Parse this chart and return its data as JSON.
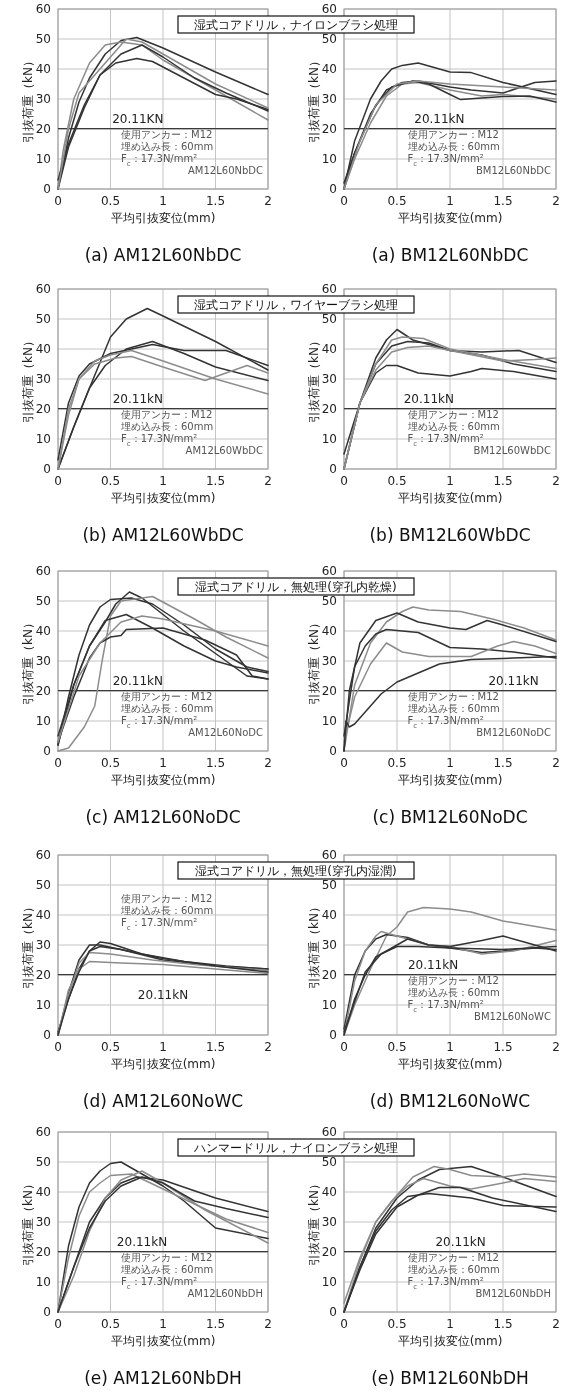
{
  "chart_data": [
    {
      "type": "line",
      "title": "湿式コアドリル，ナイロンブラシ処理",
      "subtitle": "(a) AM12L60NbDC",
      "xlabel": "平均引抜変位(mm)",
      "ylabel": "引抜荷重（kN）",
      "xlim": [
        0,
        2
      ],
      "ylim": [
        0,
        60
      ],
      "xticks": [
        0,
        0.5,
        1,
        1.5,
        2
      ],
      "yticks": [
        0,
        10,
        20,
        30,
        40,
        50,
        60
      ],
      "grid": true,
      "ref_lines": [
        {
          "axis": "y",
          "value": 20.11,
          "label": "20.11KN"
        }
      ],
      "annotations": [
        "使用アンカー：M12",
        "埋め込み長：60mm",
        "F$_{c}$：17.3N/mm²",
        "AM12L60NbDC"
      ],
      "series": [
        {
          "color": "#333333",
          "x": [
            0,
            0.1,
            0.2,
            0.3,
            0.45,
            0.6,
            0.75,
            1,
            1.5,
            2
          ],
          "values": [
            0,
            17,
            29,
            37,
            45,
            49.5,
            50.5,
            47,
            39,
            31.5
          ]
        },
        {
          "color": "#8c8c8c",
          "x": [
            0,
            0.05,
            0.15,
            0.3,
            0.45,
            0.6,
            0.8,
            1,
            1.3,
            1.6,
            2
          ],
          "values": [
            0,
            13,
            30,
            42,
            48,
            49,
            48,
            43,
            37,
            31,
            23
          ]
        },
        {
          "color": "#333333",
          "x": [
            0,
            0.1,
            0.25,
            0.4,
            0.55,
            0.75,
            0.9,
            1.2,
            1.5,
            1.7,
            2
          ],
          "values": [
            3,
            15,
            28,
            38,
            42,
            43.5,
            42.5,
            37,
            31.5,
            30,
            26.5
          ]
        },
        {
          "color": "#333333",
          "x": [
            0,
            0.1,
            0.25,
            0.4,
            0.6,
            0.8,
            1,
            1.3,
            1.6,
            2
          ],
          "values": [
            0,
            14,
            27,
            38,
            45,
            48,
            44,
            37,
            32,
            26
          ]
        },
        {
          "color": "#8c8c8c",
          "x": [
            0,
            0.1,
            0.2,
            0.3,
            0.45,
            0.65,
            0.8,
            1,
            1.5,
            2
          ],
          "values": [
            0,
            20,
            32,
            36,
            42,
            50,
            49,
            45,
            35,
            27
          ]
        }
      ]
    },
    {
      "type": "line",
      "subtitle": "(a) BM12L60NbDC",
      "xlabel": "平均引抜変位(mm)",
      "ylabel": "引抜荷重（kN）",
      "xlim": [
        0,
        2
      ],
      "ylim": [
        0,
        60
      ],
      "xticks": [
        0,
        0.5,
        1,
        1.5,
        2
      ],
      "yticks": [
        0,
        10,
        20,
        30,
        40,
        50,
        60
      ],
      "grid": true,
      "ref_lines": [
        {
          "axis": "y",
          "value": 20.11,
          "label": "20.11kN"
        }
      ],
      "annotations": [
        "使用アンカー：M12",
        "埋め込み長：60mm",
        "F$_{c}$：17.3N/mm²",
        "BM12L60NbDC"
      ],
      "series": [
        {
          "color": "#333333",
          "x": [
            0,
            0.1,
            0.25,
            0.35,
            0.45,
            0.55,
            0.7,
            0.8,
            1,
            1.2,
            1.5,
            2
          ],
          "values": [
            0,
            16,
            30,
            36,
            40,
            41.2,
            42,
            41,
            39,
            38.8,
            35.5,
            31.5
          ]
        },
        {
          "color": "#333333",
          "x": [
            0,
            0.1,
            0.25,
            0.4,
            0.55,
            0.7,
            1,
            1.2,
            1.5,
            1.8,
            2
          ],
          "values": [
            2,
            12,
            25,
            33,
            35.5,
            36,
            34,
            33,
            32,
            35.5,
            36
          ]
        },
        {
          "color": "#8c8c8c",
          "x": [
            0,
            0.1,
            0.25,
            0.4,
            0.55,
            0.7,
            1,
            1.3,
            1.5,
            2
          ],
          "values": [
            0,
            10,
            22,
            31,
            35,
            35.5,
            33,
            31,
            31.5,
            30
          ]
        },
        {
          "color": "#333333",
          "x": [
            0,
            0.1,
            0.3,
            0.45,
            0.65,
            0.8,
            1,
            1.1,
            1.5,
            1.75,
            2
          ],
          "values": [
            0,
            12,
            28,
            34,
            36,
            35,
            31.5,
            29.8,
            30.8,
            31,
            29
          ]
        },
        {
          "color": "#8c8c8c",
          "x": [
            0,
            0.15,
            0.3,
            0.5,
            0.7,
            1,
            1.5,
            2
          ],
          "values": [
            0,
            16,
            28,
            35,
            36,
            35,
            34,
            33
          ]
        }
      ]
    },
    {
      "type": "line",
      "title": "湿式コアドリル，ワイヤーブラシ処理",
      "subtitle": "(b) AM12L60WbDC",
      "xlabel": "平均引抜変位(mm)",
      "ylabel": "引抜荷重（kN）",
      "xlim": [
        0,
        2
      ],
      "ylim": [
        0,
        60
      ],
      "xticks": [
        0,
        0.5,
        1,
        1.5,
        2
      ],
      "yticks": [
        0,
        10,
        20,
        30,
        40,
        50,
        60
      ],
      "grid": true,
      "ref_lines": [
        {
          "axis": "y",
          "value": 20.11,
          "label": "20.11kN"
        }
      ],
      "annotations": [
        "使用アンカー：M12",
        "埋め込み長：60mm",
        "F$_{c}$：17.3N/mm²",
        "AM12L60WbDC"
      ],
      "series": [
        {
          "color": "#333333",
          "x": [
            0,
            0.15,
            0.3,
            0.5,
            0.65,
            0.85,
            1,
            1.5,
            2
          ],
          "values": [
            0,
            14,
            27,
            44,
            50,
            53.5,
            51,
            42.5,
            33
          ]
        },
        {
          "color": "#333333",
          "x": [
            0,
            0.1,
            0.2,
            0.3,
            0.5,
            0.7,
            0.9,
            1.2,
            1.6,
            2
          ],
          "values": [
            3,
            22,
            31,
            35,
            38.5,
            40,
            41.5,
            39.5,
            39.5,
            34.5
          ]
        },
        {
          "color": "#333333",
          "x": [
            0,
            0.15,
            0.3,
            0.45,
            0.65,
            0.9,
            1.2,
            1.5,
            2
          ],
          "values": [
            0,
            14,
            27,
            34.5,
            40,
            42.5,
            38.5,
            34,
            29.5
          ]
        },
        {
          "color": "#8c8c8c",
          "x": [
            0,
            0.1,
            0.2,
            0.35,
            0.55,
            0.7,
            1,
            1.4,
            1.8,
            2
          ],
          "values": [
            0,
            18,
            30,
            35,
            37,
            37.5,
            34,
            29.5,
            34.5,
            32
          ]
        },
        {
          "color": "#8c8c8c",
          "x": [
            0,
            0.1,
            0.2,
            0.35,
            0.5,
            0.7,
            1,
            1.5,
            2
          ],
          "values": [
            0,
            20,
            30,
            36,
            38,
            39.5,
            36,
            30,
            25
          ]
        }
      ]
    },
    {
      "type": "line",
      "subtitle": "(b) BM12L60WbDC",
      "xlabel": "平均引抜変位(mm)",
      "ylabel": "引抜荷重（kN）",
      "xlim": [
        0,
        2
      ],
      "ylim": [
        0,
        60
      ],
      "xticks": [
        0,
        0.5,
        1,
        1.5,
        2
      ],
      "yticks": [
        0,
        10,
        20,
        30,
        40,
        50,
        60
      ],
      "grid": true,
      "ref_lines": [
        {
          "axis": "y",
          "value": 20.11,
          "label": "20.11kN"
        }
      ],
      "annotations": [
        "使用アンカー：M12",
        "埋め込み長：60mm",
        "F$_{c}$：17.3N/mm²",
        "BM12L60WbDC"
      ],
      "series": [
        {
          "color": "#333333",
          "x": [
            0,
            0.15,
            0.3,
            0.4,
            0.5,
            0.65,
            0.8,
            1,
            1.3,
            1.65,
            2
          ],
          "values": [
            0,
            22,
            37,
            43,
            46.5,
            43,
            41.5,
            39.5,
            39,
            39.5,
            35.5
          ]
        },
        {
          "color": "#333333",
          "x": [
            0,
            0.15,
            0.3,
            0.4,
            0.5,
            0.7,
            1,
            1.2,
            1.3,
            1.6,
            2
          ],
          "values": [
            0,
            22,
            32,
            34.5,
            34.5,
            32,
            31,
            32.5,
            33.5,
            32.5,
            30
          ]
        },
        {
          "color": "#333333",
          "x": [
            0,
            0.15,
            0.3,
            0.45,
            0.6,
            0.8,
            1,
            1.3,
            1.6,
            2
          ],
          "values": [
            5,
            22,
            35,
            41,
            42.5,
            42,
            39.5,
            38,
            35,
            32.5
          ]
        },
        {
          "color": "#8c8c8c",
          "x": [
            0,
            0.15,
            0.3,
            0.45,
            0.55,
            0.75,
            1,
            1.5,
            2
          ],
          "values": [
            0,
            22,
            35,
            43,
            44,
            43.5,
            40,
            36.5,
            33.5
          ]
        },
        {
          "color": "#8c8c8c",
          "x": [
            0,
            0.15,
            0.3,
            0.45,
            0.6,
            0.8,
            1,
            1.5,
            1.8,
            2
          ],
          "values": [
            0,
            22,
            33,
            39,
            40.5,
            41,
            39.5,
            36,
            36.5,
            37
          ]
        }
      ]
    },
    {
      "type": "line",
      "title": "湿式コアドリル，無処理(穿孔内乾燥)",
      "subtitle": "(c) AM12L60NoDC",
      "xlabel": "平均引抜変位(mm)",
      "ylabel": "引抜荷重（kN）",
      "xlim": [
        0,
        2
      ],
      "ylim": [
        0,
        60
      ],
      "xticks": [
        0,
        0.5,
        1,
        1.5,
        2
      ],
      "yticks": [
        0,
        10,
        20,
        30,
        40,
        50,
        60
      ],
      "grid": true,
      "ref_lines": [
        {
          "axis": "y",
          "value": 20.11,
          "label": "20.11kN"
        }
      ],
      "annotations": [
        "使用アンカー：M12",
        "埋め込み長：60mm",
        "F$_{c}$：17.3N/mm²",
        "AM12L60NoDC"
      ],
      "series": [
        {
          "color": "#333333",
          "x": [
            0,
            0.1,
            0.2,
            0.3,
            0.4,
            0.5,
            0.7,
            0.9,
            1.2,
            1.5,
            1.8,
            2
          ],
          "values": [
            2,
            18,
            32,
            42,
            48,
            50.5,
            51,
            49,
            42,
            34,
            28,
            26.5
          ]
        },
        {
          "color": "#333333",
          "x": [
            0,
            0.15,
            0.3,
            0.45,
            0.55,
            0.68,
            0.8,
            1.2,
            1.6,
            1.8,
            2
          ],
          "values": [
            2,
            22,
            35,
            43,
            49,
            53,
            51,
            40,
            30,
            25,
            24
          ]
        },
        {
          "color": "#8c8c8c",
          "x": [
            0,
            0.1,
            0.25,
            0.35,
            0.42,
            0.5,
            0.6,
            0.9,
            1.3,
            1.6,
            2
          ],
          "values": [
            0,
            1,
            8,
            15,
            30,
            45,
            50,
            51.5,
            44,
            38,
            31
          ]
        },
        {
          "color": "#333333",
          "x": [
            0,
            0.15,
            0.3,
            0.45,
            0.65,
            0.9,
            1.2,
            1.5,
            1.7,
            2
          ],
          "values": [
            5,
            22,
            35,
            43.5,
            45.5,
            41,
            35,
            30,
            28,
            26
          ]
        },
        {
          "color": "#333333",
          "x": [
            0,
            0.15,
            0.3,
            0.4,
            0.5,
            0.6,
            0.65,
            1,
            1.4,
            1.7,
            1.85,
            2
          ],
          "values": [
            3,
            18,
            31,
            36,
            38,
            38.5,
            40.5,
            41,
            37,
            32,
            25,
            24
          ]
        },
        {
          "color": "#8c8c8c",
          "x": [
            0,
            0.2,
            0.4,
            0.6,
            0.8,
            1,
            1.5,
            2
          ],
          "values": [
            3,
            25,
            36,
            43,
            45,
            44,
            40,
            35
          ]
        }
      ]
    },
    {
      "type": "line",
      "subtitle": "(c) BM12L60NoDC",
      "xlabel": "平均引抜変位(mm)",
      "ylabel": "引抜荷重（kN）",
      "xlim": [
        0,
        2
      ],
      "ylim": [
        0,
        60
      ],
      "xticks": [
        0,
        0.5,
        1,
        1.5,
        2
      ],
      "yticks": [
        0,
        10,
        20,
        30,
        40,
        50,
        60
      ],
      "grid": true,
      "ref_lines": [
        {
          "axis": "y",
          "value": 20.11,
          "label": "20.11kN"
        }
      ],
      "annotations": [
        "使用アンカー：M12",
        "埋め込み長：60mm",
        "F$_{c}$：17.3N/mm²",
        "BM12L60NoDC"
      ],
      "series": [
        {
          "color": "#8c8c8c",
          "x": [
            0,
            0.1,
            0.25,
            0.4,
            0.55,
            0.65,
            0.8,
            1.1,
            1.4,
            1.7,
            2
          ],
          "values": [
            0,
            22,
            36,
            43,
            46.5,
            48,
            47,
            46.5,
            44,
            41,
            37
          ]
        },
        {
          "color": "#333333",
          "x": [
            0,
            0.05,
            0.15,
            0.3,
            0.5,
            0.7,
            1,
            1.15,
            1.35,
            1.5,
            2
          ],
          "values": [
            0,
            20,
            36,
            43.5,
            46,
            43,
            41,
            40.5,
            43.5,
            42,
            36.5
          ]
        },
        {
          "color": "#333333",
          "x": [
            0,
            0.1,
            0.2,
            0.3,
            0.4,
            0.7,
            1,
            1.3,
            1.6,
            2
          ],
          "values": [
            5,
            28,
            35,
            39,
            40.5,
            39.5,
            34.5,
            34,
            33,
            31
          ]
        },
        {
          "color": "#8c8c8c",
          "x": [
            0,
            0.1,
            0.25,
            0.4,
            0.55,
            0.8,
            1.2,
            1.45,
            1.6,
            1.8,
            2
          ],
          "values": [
            3,
            18,
            29,
            36,
            33,
            31.5,
            31.5,
            35,
            36.5,
            35,
            32.5
          ]
        },
        {
          "color": "#333333",
          "x": [
            0,
            0.02,
            0.05,
            0.1,
            0.2,
            0.35,
            0.5,
            0.7,
            0.9,
            1.2,
            1.6,
            2
          ],
          "values": [
            0,
            10,
            8,
            9,
            13,
            19,
            23,
            26,
            29,
            30.5,
            31,
            31.5
          ]
        }
      ]
    },
    {
      "type": "line",
      "title": "湿式コアドリル，無処理(穿孔内湿潤)",
      "subtitle": "(d) AM12L60NoWC",
      "xlabel": "平均引抜変位(mm)",
      "ylabel": "引抜荷重（kN）",
      "xlim": [
        0,
        2
      ],
      "ylim": [
        0,
        60
      ],
      "xticks": [
        0,
        0.5,
        1,
        1.5,
        2
      ],
      "yticks": [
        0,
        10,
        20,
        30,
        40,
        50,
        60
      ],
      "grid": true,
      "ref_lines": [
        {
          "axis": "y",
          "value": 20.11,
          "label": "20.11kN"
        }
      ],
      "annotations": [
        "使用アンカー：M12",
        "埋め込み長：60mm",
        "F$_{c}$：17.3N/mm²"
      ],
      "series": [
        {
          "color": "#333333",
          "x": [
            0,
            0.1,
            0.2,
            0.3,
            0.4,
            0.6,
            1,
            1.5,
            2
          ],
          "values": [
            0,
            14,
            25,
            30,
            30,
            28.5,
            25,
            23,
            22
          ]
        },
        {
          "color": "#333333",
          "x": [
            0,
            0.1,
            0.2,
            0.3,
            0.4,
            0.5,
            0.8,
            1.2,
            1.6,
            2
          ],
          "values": [
            1,
            12,
            22,
            28,
            31,
            30.5,
            27,
            24.5,
            23,
            22
          ]
        },
        {
          "color": "#8c8c8c",
          "x": [
            0,
            0.1,
            0.2,
            0.3,
            0.5,
            0.9,
            1.3,
            2
          ],
          "values": [
            0,
            13,
            24,
            27.5,
            27,
            25,
            23.5,
            21.5
          ]
        },
        {
          "color": "#8c8c8c",
          "x": [
            0,
            0.1,
            0.2,
            0.3,
            0.6,
            1,
            1.5,
            2
          ],
          "values": [
            0,
            15,
            22,
            24.5,
            24,
            23.5,
            22,
            20.5
          ]
        },
        {
          "color": "#333333",
          "x": [
            0,
            0.1,
            0.2,
            0.3,
            0.4,
            0.6,
            1,
            1.5,
            2
          ],
          "values": [
            0,
            12,
            21,
            28,
            29.5,
            28.5,
            25.5,
            23,
            21
          ]
        }
      ]
    },
    {
      "type": "line",
      "subtitle": "(d) BM12L60NoWC",
      "xlabel": "平均引抜変位(mm)",
      "ylabel": "引抜荷重（kN）",
      "xlim": [
        0,
        2
      ],
      "ylim": [
        0,
        60
      ],
      "xticks": [
        0,
        0.5,
        1,
        1.5,
        2
      ],
      "yticks": [
        0,
        10,
        20,
        30,
        40,
        50,
        60
      ],
      "grid": true,
      "ref_lines": [
        {
          "axis": "y",
          "value": 20.11,
          "label": "20.11kN"
        }
      ],
      "annotations": [
        "使用アンカー：M12",
        "埋め込み長：60mm",
        "F$_{c}$：17.3N/mm²",
        "BM12L60NoWC"
      ],
      "series": [
        {
          "color": "#8c8c8c",
          "x": [
            0,
            0.1,
            0.25,
            0.4,
            0.5,
            0.6,
            0.75,
            1,
            1.2,
            1.5,
            2
          ],
          "values": [
            0,
            10,
            22,
            33,
            36,
            41,
            42.5,
            42,
            41,
            38,
            35
          ]
        },
        {
          "color": "#333333",
          "x": [
            0,
            0.1,
            0.2,
            0.3,
            0.4,
            0.6,
            0.8,
            1,
            1.3,
            1.5,
            1.8,
            2
          ],
          "values": [
            2,
            20,
            28,
            32,
            33.5,
            32.5,
            30,
            29,
            27.5,
            28,
            29,
            28.5
          ]
        },
        {
          "color": "#8c8c8c",
          "x": [
            0,
            0.1,
            0.2,
            0.3,
            0.35,
            0.5,
            0.8,
            1,
            1.3,
            1.6,
            2
          ],
          "values": [
            0,
            18,
            28,
            33,
            34.5,
            33,
            30,
            29.5,
            27,
            28,
            31.5
          ]
        },
        {
          "color": "#333333",
          "x": [
            0,
            0.1,
            0.2,
            0.3,
            0.45,
            0.6,
            0.8,
            1,
            1.3,
            1.5,
            1.7,
            2
          ],
          "values": [
            0,
            12,
            20,
            26,
            29,
            32,
            30,
            29.5,
            31.5,
            33,
            31,
            28
          ]
        },
        {
          "color": "#333333",
          "x": [
            0,
            0.1,
            0.2,
            0.35,
            0.5,
            0.7,
            1,
            1.5,
            2
          ],
          "values": [
            1,
            11,
            21,
            27,
            29.5,
            29.5,
            29,
            28.5,
            29.5
          ]
        }
      ]
    },
    {
      "type": "line",
      "title": "ハンマードリル，ナイロンブラシ処理",
      "subtitle": "(e) AM12L60NbDH",
      "xlabel": "平均引抜変位(mm)",
      "ylabel": "引抜荷重（kN）",
      "xlim": [
        0,
        2
      ],
      "ylim": [
        0,
        60
      ],
      "xticks": [
        0,
        0.5,
        1,
        1.5,
        2
      ],
      "yticks": [
        0,
        10,
        20,
        30,
        40,
        50,
        60
      ],
      "grid": true,
      "ref_lines": [
        {
          "axis": "y",
          "value": 20.11,
          "label": "20.11kN"
        }
      ],
      "annotations": [
        "使用アンカー：M12",
        "埋め込み長：60mm",
        "F$_{c}$：17.3N/mm²",
        "AM12L60NbDH"
      ],
      "series": [
        {
          "color": "#333333",
          "x": [
            0,
            0.1,
            0.2,
            0.3,
            0.4,
            0.5,
            0.6,
            0.7,
            1,
            1.2,
            1.4,
            1.5,
            2
          ],
          "values": [
            0,
            22,
            35,
            43,
            47,
            49.5,
            50,
            48,
            42,
            37,
            31,
            28,
            24.5
          ]
        },
        {
          "color": "#8c8c8c",
          "x": [
            0,
            0.1,
            0.2,
            0.3,
            0.4,
            0.5,
            0.7,
            1,
            1.3,
            1.6,
            2
          ],
          "values": [
            0,
            18,
            32,
            40,
            43,
            45.5,
            46,
            41,
            36,
            31,
            26.5
          ]
        },
        {
          "color": "#333333",
          "x": [
            0,
            0.15,
            0.3,
            0.45,
            0.6,
            0.75,
            1,
            1.5,
            2
          ],
          "values": [
            0,
            15,
            30,
            38,
            43,
            45,
            44,
            38,
            33.5
          ]
        },
        {
          "color": "#8c8c8c",
          "x": [
            0,
            0.15,
            0.3,
            0.45,
            0.6,
            0.8,
            1,
            1.4,
            2
          ],
          "values": [
            0,
            12,
            27,
            38,
            44,
            47,
            43,
            34,
            23
          ]
        },
        {
          "color": "#333333",
          "x": [
            0,
            0.15,
            0.3,
            0.45,
            0.6,
            0.8,
            1,
            1.3,
            1.6,
            2
          ],
          "values": [
            0,
            15,
            28,
            37,
            42,
            45,
            43,
            37,
            34.5,
            31.5
          ]
        }
      ]
    },
    {
      "type": "line",
      "subtitle": "(e) BM12L60NbDH",
      "xlabel": "平均引抜変位(mm)",
      "ylabel": "引抜荷重（kN）",
      "xlim": [
        0,
        2
      ],
      "ylim": [
        0,
        60
      ],
      "xticks": [
        0,
        0.5,
        1,
        1.5,
        2
      ],
      "yticks": [
        0,
        10,
        20,
        30,
        40,
        50,
        60
      ],
      "grid": true,
      "ref_lines": [
        {
          "axis": "y",
          "value": 20.11,
          "label": "20.11kN"
        }
      ],
      "annotations": [
        "使用アンカー：M12",
        "埋め込み長：60mm",
        "F$_{c}$：17.3N/mm²",
        "BM12L60NbDH"
      ],
      "series": [
        {
          "color": "#333333",
          "x": [
            0,
            0.15,
            0.3,
            0.5,
            0.7,
            0.9,
            1.2,
            1.5,
            2
          ],
          "values": [
            0,
            15,
            28,
            38,
            44,
            47.5,
            48.5,
            45,
            38.5
          ]
        },
        {
          "color": "#8c8c8c",
          "x": [
            0,
            0.15,
            0.3,
            0.5,
            0.65,
            0.85,
            1,
            1.2,
            1.5,
            1.7,
            2
          ],
          "values": [
            0,
            17,
            30,
            39,
            45,
            48.5,
            47.5,
            45.5,
            45,
            46,
            45
          ]
        },
        {
          "color": "#8c8c8c",
          "x": [
            0,
            0.15,
            0.3,
            0.45,
            0.6,
            0.75,
            1,
            1.2,
            1.5,
            1.7,
            2
          ],
          "values": [
            3,
            18,
            30,
            37,
            42,
            44.5,
            42,
            41,
            43,
            44.5,
            43.5
          ]
        },
        {
          "color": "#333333",
          "x": [
            0,
            0.15,
            0.3,
            0.5,
            0.7,
            0.9,
            1.1,
            1.4,
            1.8,
            2
          ],
          "values": [
            0,
            14,
            26,
            35,
            39,
            41.5,
            41.5,
            38,
            35,
            33.5
          ]
        },
        {
          "color": "#333333",
          "x": [
            0,
            0.15,
            0.3,
            0.45,
            0.6,
            0.8,
            1.2,
            1.5,
            2
          ],
          "values": [
            0,
            15,
            27,
            34,
            38.5,
            39.5,
            38,
            35.5,
            35
          ]
        }
      ]
    }
  ]
}
